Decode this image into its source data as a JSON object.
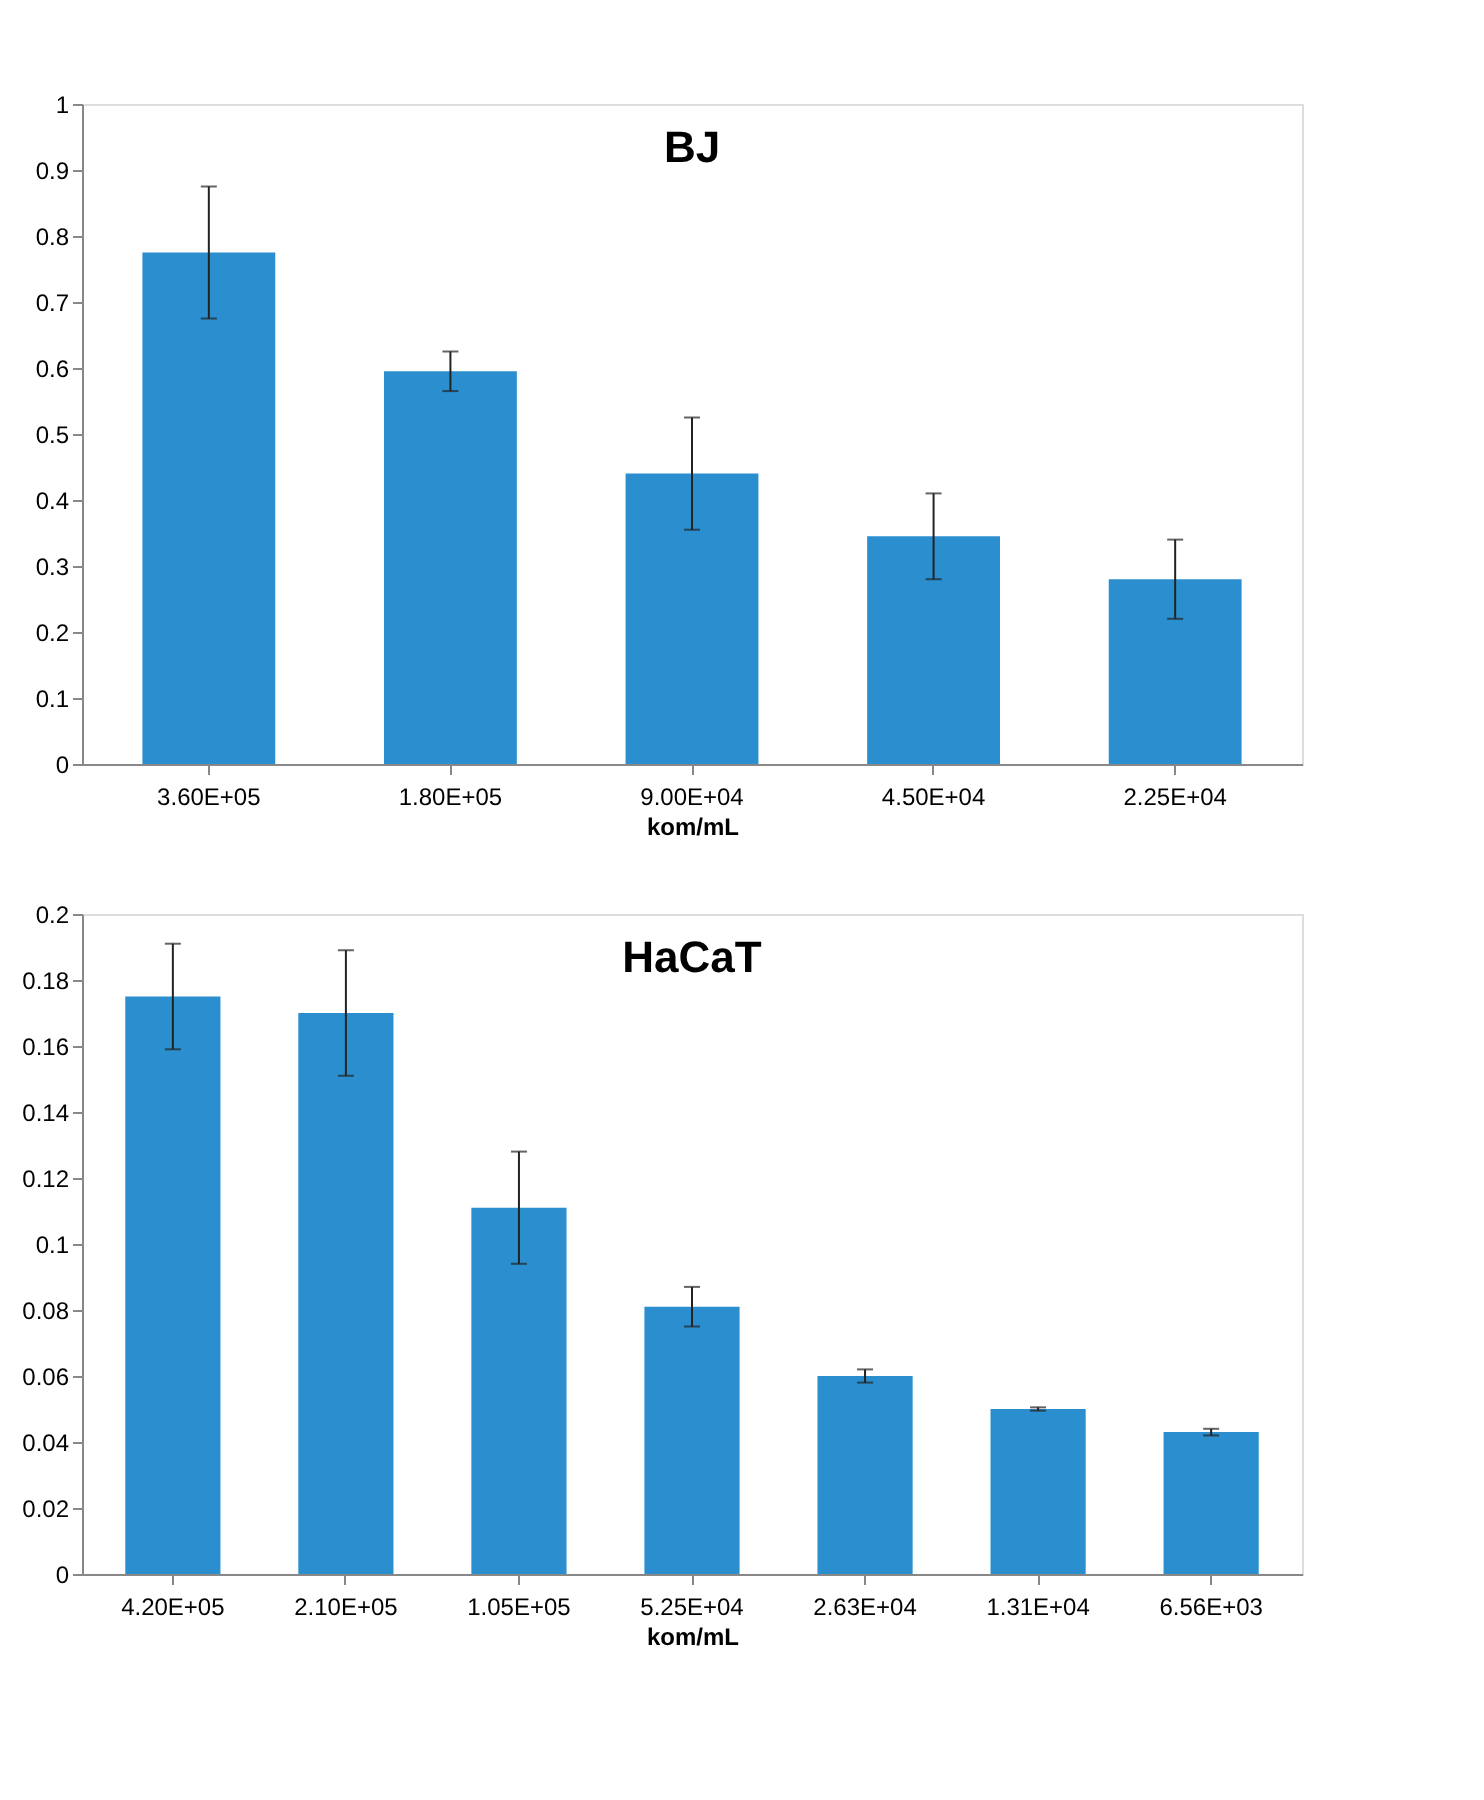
{
  "chart_data": [
    {
      "type": "bar",
      "title": "BJ",
      "xlabel": "kom/mL",
      "categories": [
        "3.60E+05",
        "1.80E+05",
        "9.00E+04",
        "4.50E+04",
        "2.25E+04"
      ],
      "values": [
        0.775,
        0.595,
        0.44,
        0.345,
        0.28
      ],
      "errors": [
        0.1,
        0.03,
        0.085,
        0.065,
        0.06
      ],
      "color": "#2b8fcf",
      "ylim": [
        0,
        1
      ],
      "yticks": [
        0,
        0.1,
        0.2,
        0.3,
        0.4,
        0.5,
        0.6,
        0.7,
        0.8,
        0.9,
        1
      ],
      "grid": false
    },
    {
      "type": "bar",
      "title": "HaCaT",
      "xlabel": "kom/mL",
      "categories": [
        "4.20E+05",
        "2.10E+05",
        "1.05E+05",
        "5.25E+04",
        "2.63E+04",
        "1.31E+04",
        "6.56E+03"
      ],
      "values": [
        0.175,
        0.17,
        0.111,
        0.081,
        0.06,
        0.05,
        0.043
      ],
      "errors": [
        0.016,
        0.019,
        0.017,
        0.006,
        0.002,
        0.0005,
        0.001
      ],
      "color": "#2b8fcf",
      "ylim": [
        0,
        0.2
      ],
      "yticks": [
        0,
        0.02,
        0.04,
        0.06,
        0.08,
        0.1,
        0.12,
        0.14,
        0.16,
        0.18,
        0.2
      ],
      "grid": false
    }
  ]
}
